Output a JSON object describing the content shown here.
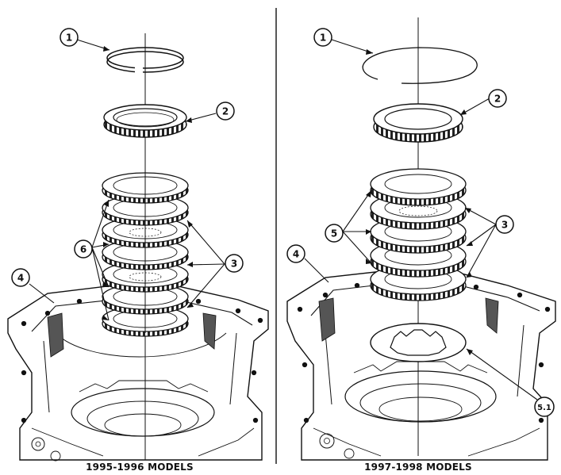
{
  "callouts": {
    "left": {
      "c1": "1",
      "c2": "2",
      "c3": "3",
      "c4": "4",
      "c6": "6"
    },
    "right": {
      "c1": "1",
      "c2": "2",
      "c3": "3",
      "c4": "4",
      "c5": "5",
      "c51": "5.1"
    }
  },
  "captions": {
    "left": "1995-1996 MODELS",
    "right": "1997-1998 MODELS"
  }
}
